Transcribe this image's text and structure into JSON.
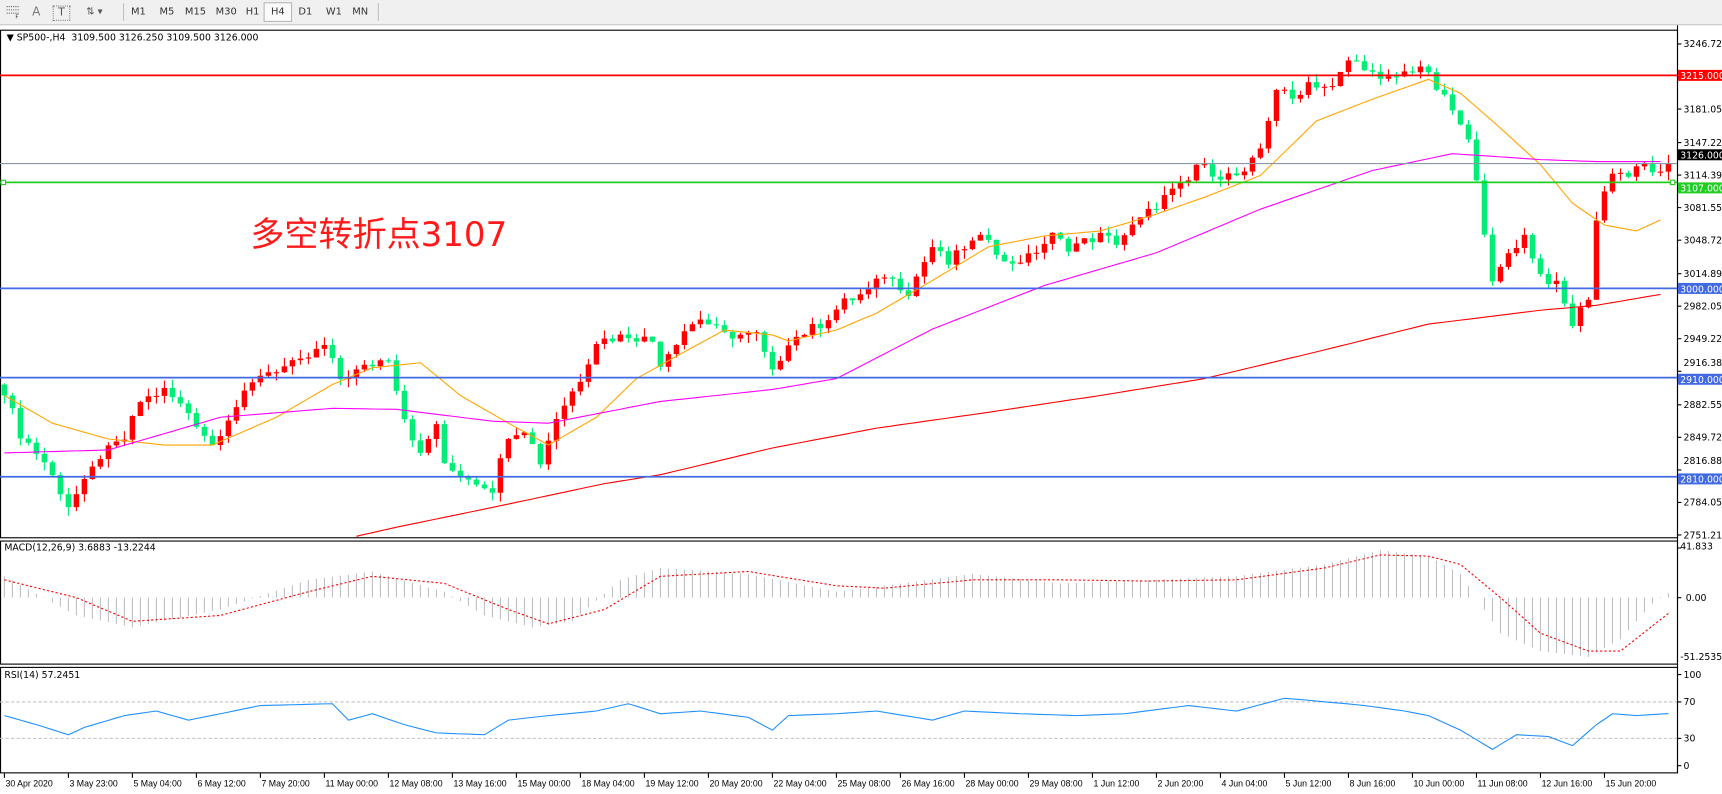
{
  "toolbar": {
    "tools": [
      {
        "icon": "fibonacci-fan-icon"
      },
      {
        "icon": "text-icon",
        "label": "A"
      },
      {
        "icon": "text-label-icon",
        "label": "T"
      },
      {
        "icon": "arrows-icon"
      }
    ],
    "timeframes": [
      "M1",
      "M5",
      "M15",
      "M30",
      "H1",
      "H4",
      "D1",
      "W1",
      "MN"
    ],
    "active_timeframe": "H4"
  },
  "chart_header": {
    "symbol": "SP500-,H4",
    "ohlc": "3109.500 3126.250 3109.500 3126.000"
  },
  "annotation": "多空转折点3107",
  "colors": {
    "bull": "#ff0000",
    "bear": "#00ee76",
    "ma_fast": "#ffa500",
    "ma_mid": "#ff00ff",
    "ma_slow": "#ff0000",
    "rsi": "#1e90ff",
    "macd_hist": "#c0c0c0",
    "macd_signal": "#ff0000"
  },
  "chart_data": [
    {
      "type": "candlestick",
      "title": "SP500-,H4",
      "ylim": [
        2751.215,
        3246.725
      ],
      "price_ticks": [
        "3246.725",
        "3181.055",
        "3147.225",
        "3114.390",
        "3081.555",
        "3048.720",
        "3014.890",
        "2982.055",
        "2949.220",
        "2916.385",
        "2882.555",
        "2849.720",
        "2816.885",
        "2784.050",
        "2751.215"
      ],
      "bars": 209,
      "close_path": [
        [
          0,
          2897
        ],
        [
          2,
          2853
        ],
        [
          5,
          2825
        ],
        [
          8,
          2781
        ],
        [
          10,
          2803
        ],
        [
          12,
          2831
        ],
        [
          15,
          2848
        ],
        [
          17,
          2886
        ],
        [
          20,
          2897
        ],
        [
          23,
          2875
        ],
        [
          26,
          2842
        ],
        [
          28,
          2870
        ],
        [
          32,
          2914
        ],
        [
          37,
          2925
        ],
        [
          40,
          2942
        ],
        [
          42,
          2909
        ],
        [
          45,
          2920
        ],
        [
          48,
          2931
        ],
        [
          50,
          2870
        ],
        [
          52,
          2831
        ],
        [
          54,
          2864
        ],
        [
          55,
          2820
        ],
        [
          58,
          2809
        ],
        [
          61,
          2798
        ],
        [
          63,
          2853
        ],
        [
          65,
          2859
        ],
        [
          67,
          2825
        ],
        [
          69,
          2870
        ],
        [
          72,
          2909
        ],
        [
          74,
          2947
        ],
        [
          78,
          2953
        ],
        [
          81,
          2947
        ],
        [
          82,
          2925
        ],
        [
          85,
          2958
        ],
        [
          87,
          2970
        ],
        [
          90,
          2953
        ],
        [
          94,
          2953
        ],
        [
          96,
          2914
        ],
        [
          98,
          2947
        ],
        [
          102,
          2964
        ],
        [
          105,
          2986
        ],
        [
          108,
          2997
        ],
        [
          110,
          3014
        ],
        [
          113,
          2997
        ],
        [
          116,
          3042
        ],
        [
          118,
          3025
        ],
        [
          120,
          3042
        ],
        [
          123,
          3053
        ],
        [
          125,
          3025
        ],
        [
          128,
          3031
        ],
        [
          131,
          3053
        ],
        [
          133,
          3042
        ],
        [
          137,
          3053
        ],
        [
          139,
          3047
        ],
        [
          142,
          3069
        ],
        [
          145,
          3092
        ],
        [
          148,
          3108
        ],
        [
          149,
          3125
        ],
        [
          152,
          3114
        ],
        [
          155,
          3114
        ],
        [
          157,
          3141
        ],
        [
          159,
          3202
        ],
        [
          161,
          3191
        ],
        [
          163,
          3208
        ],
        [
          166,
          3202
        ],
        [
          168,
          3230
        ],
        [
          170,
          3225
        ],
        [
          172,
          3208
        ],
        [
          174,
          3214
        ],
        [
          177,
          3225
        ],
        [
          179,
          3202
        ],
        [
          181,
          3180
        ],
        [
          183,
          3147
        ],
        [
          184,
          3114
        ],
        [
          186,
          3003
        ],
        [
          188,
          3036
        ],
        [
          190,
          3053
        ],
        [
          192,
          3014
        ],
        [
          194,
          3003
        ],
        [
          196,
          2964
        ],
        [
          198,
          2992
        ],
        [
          199,
          3069
        ],
        [
          200,
          3097
        ],
        [
          201,
          3119
        ],
        [
          203,
          3114
        ],
        [
          205,
          3125
        ],
        [
          207,
          3114
        ],
        [
          208,
          3126
        ]
      ],
      "last_close": "3126.000",
      "hlines": [
        {
          "price": 3215,
          "label": "3215.000",
          "color": "#ff0000"
        },
        {
          "price": 3126,
          "label": "3126.000",
          "color": "#8a9aa8",
          "label_bg": "#000000"
        },
        {
          "price": 3107,
          "label": "3107.000",
          "color": "#22cc22"
        },
        {
          "price": 3000,
          "label": "3000.000",
          "color": "#4169e1"
        },
        {
          "price": 2910,
          "label": "2910.000",
          "color": "#4169e1"
        },
        {
          "price": 2810,
          "label": "2810.000",
          "color": "#4169e1"
        }
      ],
      "moving_averages": [
        {
          "color": "#ffa500",
          "points": [
            [
              0,
              2892
            ],
            [
              6,
              2864
            ],
            [
              13,
              2848
            ],
            [
              20,
              2842
            ],
            [
              26,
              2842
            ],
            [
              34,
              2870
            ],
            [
              41,
              2903
            ],
            [
              46,
              2920
            ],
            [
              52,
              2925
            ],
            [
              57,
              2892
            ],
            [
              63,
              2864
            ],
            [
              68,
              2842
            ],
            [
              74,
              2870
            ],
            [
              79,
              2909
            ],
            [
              85,
              2936
            ],
            [
              90,
              2958
            ],
            [
              96,
              2953
            ],
            [
              98,
              2947
            ],
            [
              104,
              2958
            ],
            [
              109,
              2975
            ],
            [
              116,
              3008
            ],
            [
              123,
              3042
            ],
            [
              130,
              3053
            ],
            [
              137,
              3058
            ],
            [
              144,
              3075
            ],
            [
              150,
              3092
            ],
            [
              157,
              3114
            ],
            [
              164,
              3169
            ],
            [
              171,
              3191
            ],
            [
              178,
              3211
            ],
            [
              182,
              3197
            ],
            [
              186,
              3169
            ],
            [
              192,
              3125
            ],
            [
              196,
              3086
            ],
            [
              200,
              3064
            ],
            [
              204,
              3058
            ],
            [
              207,
              3069
            ]
          ]
        },
        {
          "color": "#ff00ff",
          "points": [
            [
              0,
              2834
            ],
            [
              13,
              2837
            ],
            [
              27,
              2870
            ],
            [
              41,
              2879
            ],
            [
              49,
              2878
            ],
            [
              61,
              2866
            ],
            [
              68,
              2864
            ],
            [
              82,
              2886
            ],
            [
              96,
              2898
            ],
            [
              104,
              2909
            ],
            [
              116,
              2959
            ],
            [
              130,
              3003
            ],
            [
              144,
              3036
            ],
            [
              157,
              3080
            ],
            [
              171,
              3119
            ],
            [
              181,
              3136
            ],
            [
              192,
              3130
            ],
            [
              199,
              3128
            ],
            [
              207,
              3128
            ]
          ]
        },
        {
          "color": "#ff0000",
          "points": [
            [
              43,
              2748
            ],
            [
              49,
              2759
            ],
            [
              61,
              2779
            ],
            [
              75,
              2803
            ],
            [
              82,
              2812
            ],
            [
              96,
              2839
            ],
            [
              109,
              2859
            ],
            [
              123,
              2875
            ],
            [
              137,
              2892
            ],
            [
              150,
              2909
            ],
            [
              164,
              2936
            ],
            [
              178,
              2964
            ],
            [
              192,
              2978
            ],
            [
              199,
              2983
            ],
            [
              207,
              2994
            ]
          ]
        }
      ],
      "x_labels": [
        "30 Apr 2020",
        "3 May 23:00",
        "5 May 04:00",
        "6 May 12:00",
        "7 May 20:00",
        "11 May 00:00",
        "12 May 08:00",
        "13 May 16:00",
        "15 May 00:00",
        "18 May 04:00",
        "19 May 12:00",
        "20 May 20:00",
        "22 May 04:00",
        "25 May 08:00",
        "26 May 16:00",
        "28 May 00:00",
        "29 May 08:00",
        "1 Jun 12:00",
        "2 Jun 20:00",
        "4 Jun 04:00",
        "5 Jun 12:00",
        "8 Jun 16:00",
        "10 Jun 00:00",
        "11 Jun 08:00",
        "12 Jun 16:00",
        "15 Jun 20:00"
      ]
    },
    {
      "type": "bar",
      "title": "MACD(12,26,9) 3.6883 -13.2244",
      "ylim": [
        -51.2535,
        41.833
      ],
      "ticks": [
        "41.833",
        "0.00",
        "-51.2535"
      ],
      "macd_path": [
        [
          0,
          18
        ],
        [
          9,
          -15
        ],
        [
          16,
          -25
        ],
        [
          27,
          -10
        ],
        [
          38,
          15
        ],
        [
          46,
          22
        ],
        [
          55,
          5
        ],
        [
          60,
          -15
        ],
        [
          66,
          -25
        ],
        [
          71,
          -20
        ],
        [
          77,
          15
        ],
        [
          82,
          25
        ],
        [
          93,
          20
        ],
        [
          104,
          5
        ],
        [
          110,
          10
        ],
        [
          121,
          20
        ],
        [
          132,
          12
        ],
        [
          143,
          15
        ],
        [
          154,
          18
        ],
        [
          165,
          28
        ],
        [
          172,
          40
        ],
        [
          178,
          35
        ],
        [
          182,
          20
        ],
        [
          187,
          -30
        ],
        [
          192,
          -45
        ],
        [
          198,
          -50
        ],
        [
          202,
          -35
        ],
        [
          206,
          -5
        ],
        [
          208,
          3.7
        ]
      ],
      "signal_path": [
        [
          0,
          15
        ],
        [
          9,
          0
        ],
        [
          16,
          -20
        ],
        [
          27,
          -15
        ],
        [
          38,
          5
        ],
        [
          46,
          18
        ],
        [
          55,
          12
        ],
        [
          63,
          -10
        ],
        [
          68,
          -22
        ],
        [
          75,
          -10
        ],
        [
          82,
          18
        ],
        [
          93,
          22
        ],
        [
          104,
          10
        ],
        [
          110,
          8
        ],
        [
          121,
          15
        ],
        [
          132,
          15
        ],
        [
          143,
          14
        ],
        [
          154,
          15
        ],
        [
          165,
          25
        ],
        [
          172,
          36
        ],
        [
          178,
          35
        ],
        [
          182,
          28
        ],
        [
          187,
          0
        ],
        [
          192,
          -30
        ],
        [
          198,
          -45
        ],
        [
          202,
          -45
        ],
        [
          208,
          -13.2
        ]
      ]
    },
    {
      "type": "line",
      "title": "RSI(14) 57.2451",
      "ylim": [
        0,
        100
      ],
      "ticks": [
        "100",
        "70",
        "30",
        "0"
      ],
      "levels": [
        70,
        30
      ],
      "points": [
        [
          0,
          55
        ],
        [
          4,
          45
        ],
        [
          8,
          34
        ],
        [
          10,
          42
        ],
        [
          15,
          55
        ],
        [
          19,
          60
        ],
        [
          23,
          50
        ],
        [
          27,
          57
        ],
        [
          32,
          66
        ],
        [
          41,
          68
        ],
        [
          43,
          50
        ],
        [
          46,
          57
        ],
        [
          50,
          45
        ],
        [
          54,
          36
        ],
        [
          60,
          34
        ],
        [
          63,
          50
        ],
        [
          68,
          55
        ],
        [
          74,
          60
        ],
        [
          78,
          68
        ],
        [
          82,
          57
        ],
        [
          87,
          60
        ],
        [
          93,
          53
        ],
        [
          96,
          39
        ],
        [
          98,
          55
        ],
        [
          104,
          57
        ],
        [
          109,
          60
        ],
        [
          116,
          50
        ],
        [
          120,
          60
        ],
        [
          127,
          57
        ],
        [
          134,
          55
        ],
        [
          140,
          57
        ],
        [
          148,
          66
        ],
        [
          154,
          60
        ],
        [
          160,
          74
        ],
        [
          164,
          71
        ],
        [
          170,
          66
        ],
        [
          175,
          60
        ],
        [
          178,
          55
        ],
        [
          182,
          39
        ],
        [
          186,
          18
        ],
        [
          189,
          34
        ],
        [
          193,
          32
        ],
        [
          196,
          22
        ],
        [
          199,
          45
        ],
        [
          201,
          57
        ],
        [
          204,
          55
        ],
        [
          208,
          57.2
        ]
      ]
    }
  ]
}
